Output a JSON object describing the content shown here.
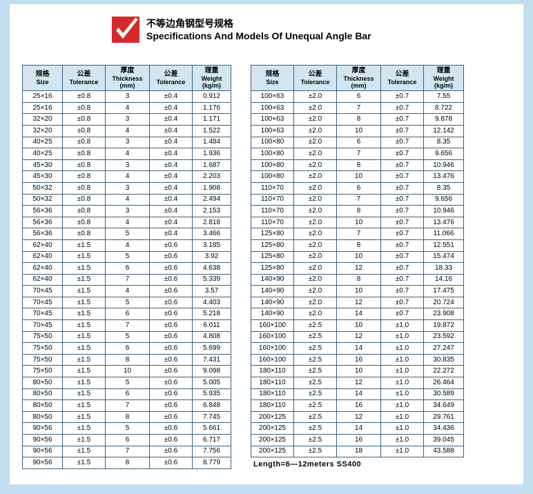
{
  "header": {
    "logo_bg": "#d42a2a",
    "logo_check": "#ffffff",
    "title_cn": "不等边角钢型号规格",
    "title_en": "Specifications And Models Of Unequal Angle Bar"
  },
  "colors": {
    "page_bg": "#ffffff",
    "outer_bg": "#c3def0",
    "header_cell_bg": "#d2e5f0",
    "border": "#3b5f7a",
    "text": "#000000"
  },
  "columns": {
    "size_cn": "规格",
    "size_en": "Size",
    "tol_cn": "公差",
    "tol_en": "Tolerance",
    "thick_cn": "厚度",
    "thick_en": "Thickness",
    "thick_unit": "(mm)",
    "tol2_cn": "公差",
    "tol2_en": "Tolerance",
    "wt_cn": "理重",
    "wt_en": "Weight",
    "wt_unit": "(kg/m)"
  },
  "left": {
    "rows": [
      [
        "25×16",
        "±0.8",
        "3",
        "±0.4",
        "0.912"
      ],
      [
        "25×16",
        "±0.8",
        "4",
        "±0.4",
        "1.176"
      ],
      [
        "32×20",
        "±0.8",
        "3",
        "±0.4",
        "1.171"
      ],
      [
        "32×20",
        "±0.8",
        "4",
        "±0.4",
        "1.522"
      ],
      [
        "40×25",
        "±0.8",
        "3",
        "±0.4",
        "1.484"
      ],
      [
        "40×25",
        "±0.8",
        "4",
        "±0.4",
        "1.936"
      ],
      [
        "45×30",
        "±0.8",
        "3",
        "±0.4",
        "1.687"
      ],
      [
        "45×30",
        "±0.8",
        "4",
        "±0.4",
        "2.203"
      ],
      [
        "50×32",
        "±0.8",
        "3",
        "±0.4",
        "1.908"
      ],
      [
        "50×32",
        "±0.8",
        "4",
        "±0.4",
        "2.494"
      ],
      [
        "56×36",
        "±0.8",
        "3",
        "±0.4",
        "2.153"
      ],
      [
        "56×36",
        "±0.8",
        "4",
        "±0.4",
        "2.818"
      ],
      [
        "56×36",
        "±0.8",
        "5",
        "±0.4",
        "3.466"
      ],
      [
        "62×40",
        "±1.5",
        "4",
        "±0.6",
        "3.185"
      ],
      [
        "62×40",
        "±1.5",
        "5",
        "±0.6",
        "3.92"
      ],
      [
        "62×40",
        "±1.5",
        "6",
        "±0.6",
        "4.638"
      ],
      [
        "62×40",
        "±1.5",
        "7",
        "±0.6",
        "5.339"
      ],
      [
        "70×45",
        "±1.5",
        "4",
        "±0.6",
        "3.57"
      ],
      [
        "70×45",
        "±1.5",
        "5",
        "±0.6",
        "4.403"
      ],
      [
        "70×45",
        "±1.5",
        "6",
        "±0.6",
        "5.218"
      ],
      [
        "70×45",
        "±1.5",
        "7",
        "±0.6",
        "6.011"
      ],
      [
        "75×50",
        "±1.5",
        "5",
        "±0.6",
        "4.808"
      ],
      [
        "75×50",
        "±1.5",
        "6",
        "±0.6",
        "5.699"
      ],
      [
        "75×50",
        "±1.5",
        "8",
        "±0.6",
        "7.431"
      ],
      [
        "75×50",
        "±1.5",
        "10",
        "±0.6",
        "9.098"
      ],
      [
        "80×50",
        "±1.5",
        "5",
        "±0.6",
        "5.005"
      ],
      [
        "80×50",
        "±1.5",
        "6",
        "±0.6",
        "5.935"
      ],
      [
        "80×50",
        "±1.5",
        "7",
        "±0.6",
        "6.848"
      ],
      [
        "80×50",
        "±1.5",
        "8",
        "±0.6",
        "7.745"
      ],
      [
        "90×56",
        "±1.5",
        "5",
        "±0.6",
        "5.661"
      ],
      [
        "90×56",
        "±1.5",
        "6",
        "±0.6",
        "6.717"
      ],
      [
        "90×56",
        "±1.5",
        "7",
        "±0.6",
        "7.756"
      ],
      [
        "90×56",
        "±1.5",
        "8",
        "±0.6",
        "8.779"
      ]
    ]
  },
  "right": {
    "rows": [
      [
        "100×63",
        "±2.0",
        "6",
        "±0.7",
        "7.55"
      ],
      [
        "100×63",
        "±2.0",
        "7",
        "±0.7",
        "8.722"
      ],
      [
        "100×63",
        "±2.0",
        "8",
        "±0.7",
        "9.878"
      ],
      [
        "100×63",
        "±2.0",
        "10",
        "±0.7",
        "12.142"
      ],
      [
        "100×80",
        "±2.0",
        "6",
        "±0.7",
        "8.35"
      ],
      [
        "100×80",
        "±2.0",
        "7",
        "±0.7",
        "9.656"
      ],
      [
        "100×80",
        "±2.0",
        "8",
        "±0.7",
        "10.946"
      ],
      [
        "100×80",
        "±2.0",
        "10",
        "±0.7",
        "13.476"
      ],
      [
        "110×70",
        "±2.0",
        "6",
        "±0.7",
        "8.35"
      ],
      [
        "110×70",
        "±2.0",
        "7",
        "±0.7",
        "9.656"
      ],
      [
        "110×70",
        "±2.0",
        "8",
        "±0.7",
        "10.946"
      ],
      [
        "110×70",
        "±2.0",
        "10",
        "±0.7",
        "13.476"
      ],
      [
        "125×80",
        "±2.0",
        "7",
        "±0.7",
        "11.066"
      ],
      [
        "125×80",
        "±2.0",
        "8",
        "±0.7",
        "12.551"
      ],
      [
        "125×80",
        "±2.0",
        "10",
        "±0.7",
        "15.474"
      ],
      [
        "125×80",
        "±2.0",
        "12",
        "±0.7",
        "18.33"
      ],
      [
        "140×90",
        "±2.0",
        "8",
        "±0.7",
        "14.16"
      ],
      [
        "140×90",
        "±2.0",
        "10",
        "±0.7",
        "17.475"
      ],
      [
        "140×90",
        "±2.0",
        "12",
        "±0.7",
        "20.724"
      ],
      [
        "140×90",
        "±2.0",
        "14",
        "±0.7",
        "23.908"
      ],
      [
        "160×100",
        "±2.5",
        "10",
        "±1.0",
        "19.872"
      ],
      [
        "160×100",
        "±2.5",
        "12",
        "±1.0",
        "23.592"
      ],
      [
        "160×100",
        "±2.5",
        "14",
        "±1.0",
        "27.247"
      ],
      [
        "160×100",
        "±2.5",
        "16",
        "±1.0",
        "30.835"
      ],
      [
        "180×110",
        "±2.5",
        "10",
        "±1.0",
        "22.272"
      ],
      [
        "180×110",
        "±2.5",
        "12",
        "±1.0",
        "26.464"
      ],
      [
        "180×110",
        "±2.5",
        "14",
        "±1.0",
        "30.589"
      ],
      [
        "180×110",
        "±2.5",
        "16",
        "±1.0",
        "34.649"
      ],
      [
        "200×125",
        "±2.5",
        "12",
        "±1.0",
        "29.761"
      ],
      [
        "200×125",
        "±2.5",
        "14",
        "±1.0",
        "34.436"
      ],
      [
        "200×125",
        "±2.5",
        "16",
        "±1.0",
        "39.045"
      ],
      [
        "200×125",
        "±2.5",
        "18",
        "±1.0",
        "43.588"
      ]
    ]
  },
  "footer": "Length=6—12meters  SS400"
}
